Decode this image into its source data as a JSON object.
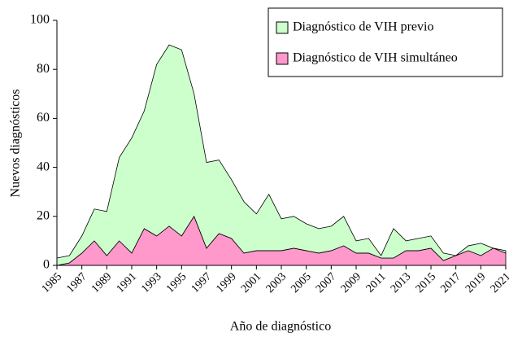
{
  "chart_data": {
    "type": "stacked_area",
    "x_label": "Año de diagnóstico",
    "y_label": "Nuevos diagnósticos",
    "x": [
      1985,
      1986,
      1987,
      1988,
      1989,
      1990,
      1991,
      1992,
      1993,
      1994,
      1995,
      1996,
      1997,
      1998,
      1999,
      2000,
      2001,
      2002,
      2003,
      2004,
      2005,
      2006,
      2007,
      2008,
      2009,
      2010,
      2011,
      2012,
      2013,
      2014,
      2015,
      2016,
      2017,
      2018,
      2019,
      2020,
      2021
    ],
    "series": [
      {
        "name": "Diagnóstico de VIH simultáneo",
        "color": "#ff99cc",
        "values": [
          0,
          1,
          5,
          10,
          4,
          10,
          5,
          15,
          12,
          16,
          12,
          20,
          7,
          13,
          11,
          5,
          6,
          6,
          6,
          7,
          6,
          5,
          6,
          8,
          5,
          5,
          3,
          3,
          6,
          6,
          7,
          2,
          4,
          6,
          4,
          7,
          5
        ]
      },
      {
        "name": "Diagnóstico de VIH previo",
        "color": "#ccffcc",
        "values": [
          3,
          3,
          7,
          13,
          18,
          34,
          47,
          48,
          70,
          74,
          76,
          50,
          35,
          30,
          24,
          21,
          15,
          23,
          13,
          13,
          11,
          10,
          10,
          12,
          5,
          6,
          1,
          12,
          4,
          5,
          5,
          3,
          0,
          2,
          5,
          0,
          1
        ]
      }
    ],
    "xlim": [
      1985,
      2021
    ],
    "xticks": [
      1985,
      1987,
      1989,
      1991,
      1993,
      1995,
      1997,
      1999,
      2001,
      2003,
      2005,
      2007,
      2009,
      2011,
      2013,
      2015,
      2017,
      2019,
      2021
    ],
    "ylim": [
      0,
      100
    ],
    "yticks": [
      0,
      20,
      40,
      60,
      80,
      100
    ],
    "legend": "top-right"
  }
}
